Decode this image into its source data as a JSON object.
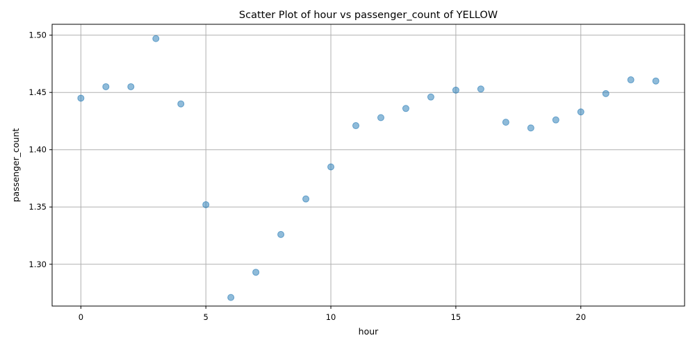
{
  "chart_data": {
    "type": "scatter",
    "title": "Scatter Plot of hour vs passenger_count of YELLOW",
    "xlabel": "hour",
    "ylabel": "passenger_count",
    "xlim": [
      -1.15,
      24.15
    ],
    "ylim": [
      1.2635,
      1.5095
    ],
    "x_ticks": [
      0,
      5,
      10,
      15,
      20
    ],
    "x_tick_labels": [
      "0",
      "5",
      "10",
      "15",
      "20"
    ],
    "y_ticks": [
      1.3,
      1.35,
      1.4,
      1.45,
      1.5
    ],
    "y_tick_labels": [
      "1.30",
      "1.35",
      "1.40",
      "1.45",
      "1.50"
    ],
    "grid": true,
    "marker_color": "#1f77b4",
    "marker_alpha": 0.5,
    "points": [
      {
        "x": 0,
        "y": 1.445
      },
      {
        "x": 1,
        "y": 1.455
      },
      {
        "x": 2,
        "y": 1.455
      },
      {
        "x": 3,
        "y": 1.497
      },
      {
        "x": 4,
        "y": 1.44
      },
      {
        "x": 5,
        "y": 1.352
      },
      {
        "x": 6,
        "y": 1.271
      },
      {
        "x": 7,
        "y": 1.293
      },
      {
        "x": 8,
        "y": 1.326
      },
      {
        "x": 9,
        "y": 1.357
      },
      {
        "x": 10,
        "y": 1.385
      },
      {
        "x": 11,
        "y": 1.421
      },
      {
        "x": 12,
        "y": 1.428
      },
      {
        "x": 13,
        "y": 1.436
      },
      {
        "x": 14,
        "y": 1.446
      },
      {
        "x": 15,
        "y": 1.452
      },
      {
        "x": 16,
        "y": 1.453
      },
      {
        "x": 17,
        "y": 1.424
      },
      {
        "x": 18,
        "y": 1.419
      },
      {
        "x": 19,
        "y": 1.426
      },
      {
        "x": 20,
        "y": 1.433
      },
      {
        "x": 21,
        "y": 1.449
      },
      {
        "x": 22,
        "y": 1.461
      },
      {
        "x": 23,
        "y": 1.46
      }
    ]
  }
}
